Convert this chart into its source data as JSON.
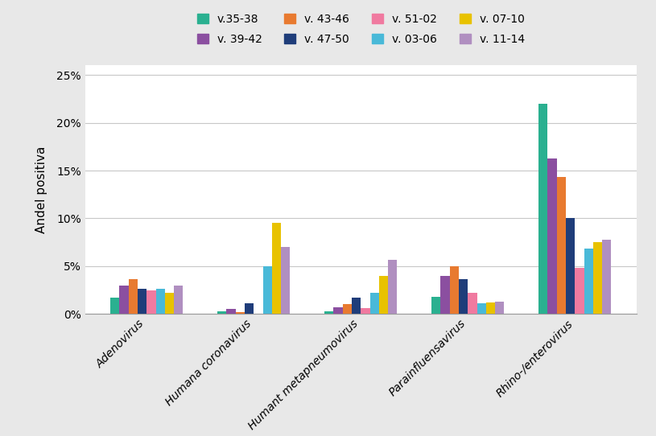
{
  "categories": [
    "Adenovirus",
    "Humana coronavirus",
    "Humant metapneumovirus",
    "Parainfluensavirus",
    "Rhino-/enterovirus"
  ],
  "series": [
    {
      "label": "v.35-38",
      "color": "#2ab090",
      "values": [
        0.017,
        0.003,
        0.003,
        0.018,
        0.22
      ]
    },
    {
      "label": "v. 39-42",
      "color": "#8b4fa0",
      "values": [
        0.03,
        0.005,
        0.007,
        0.04,
        0.163
      ]
    },
    {
      "label": "v. 43-46",
      "color": "#e87a30",
      "values": [
        0.036,
        0.002,
        0.01,
        0.05,
        0.143
      ]
    },
    {
      "label": "v. 47-50",
      "color": "#1f3d7a",
      "values": [
        0.026,
        0.011,
        0.017,
        0.036,
        0.1
      ]
    },
    {
      "label": "v. 51-02",
      "color": "#f07aa0",
      "values": [
        0.025,
        0.0,
        0.006,
        0.022,
        0.048
      ]
    },
    {
      "label": "v. 03-06",
      "color": "#49b9d8",
      "values": [
        0.026,
        0.05,
        0.022,
        0.011,
        0.068
      ]
    },
    {
      "label": "v. 07-10",
      "color": "#e8c200",
      "values": [
        0.022,
        0.095,
        0.04,
        0.012,
        0.075
      ]
    },
    {
      "label": "v. 11-14",
      "color": "#b08fc0",
      "values": [
        0.03,
        0.07,
        0.057,
        0.013,
        0.078
      ]
    }
  ],
  "ylabel": "Andel positiva",
  "ylim": [
    0,
    0.26
  ],
  "yticks": [
    0,
    0.05,
    0.1,
    0.15,
    0.2,
    0.25
  ],
  "ytick_labels": [
    "0%",
    "5%",
    "10%",
    "15%",
    "20%",
    "25%"
  ],
  "figure_facecolor": "#e8e8e8",
  "axes_facecolor": "#ffffff",
  "grid_color": "#c8c8c8"
}
